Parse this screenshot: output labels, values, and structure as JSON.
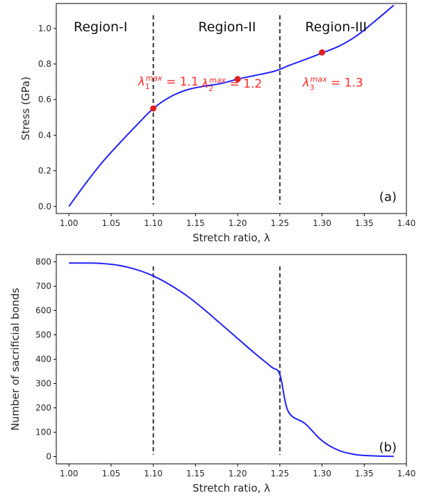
{
  "chart_data": [
    {
      "type": "line",
      "panel_label": "(a)",
      "xlabel": "Stretch ratio, λ",
      "ylabel": "Stress (GPa)",
      "xlim": [
        0.985,
        1.4
      ],
      "ylim": [
        -0.04,
        1.14
      ],
      "xticks": [
        "1.00",
        "1.05",
        "1.10",
        "1.15",
        "1.20",
        "1.25",
        "1.30",
        "1.35",
        "1.40"
      ],
      "yticks": [
        "0.0",
        "0.2",
        "0.4",
        "0.6",
        "0.8",
        "1.0"
      ],
      "grid": false,
      "series_color": "#1f1fff",
      "x": [
        1.0,
        1.02,
        1.04,
        1.06,
        1.08,
        1.1,
        1.12,
        1.14,
        1.16,
        1.18,
        1.2,
        1.22,
        1.24,
        1.25,
        1.26,
        1.28,
        1.3,
        1.32,
        1.34,
        1.36,
        1.385
      ],
      "y": [
        0.0,
        0.13,
        0.25,
        0.355,
        0.455,
        0.55,
        0.615,
        0.655,
        0.675,
        0.69,
        0.715,
        0.735,
        0.755,
        0.77,
        0.79,
        0.825,
        0.862,
        0.9,
        0.955,
        1.03,
        1.13
      ],
      "vlines": [
        1.1,
        1.25
      ],
      "regions": [
        {
          "label": "Region-I",
          "x": 1.0375
        },
        {
          "label": "Region-II",
          "x": 1.1875
        },
        {
          "label": "Region-III",
          "x": 1.3165
        }
      ],
      "markers": [
        {
          "x": 1.1,
          "y": 0.55,
          "sub": "1",
          "label_value": "1.1"
        },
        {
          "x": 1.2,
          "y": 0.715,
          "sub": "2",
          "label_value": "1.2"
        },
        {
          "x": 1.3,
          "y": 0.865,
          "sub": "3",
          "label_value": "1.3"
        }
      ],
      "annotation_symbol": "λ",
      "annotation_sup": "max",
      "annotation_eq": " = ",
      "marker_color": "#e02020"
    },
    {
      "type": "line",
      "panel_label": "(b)",
      "xlabel": "Stretch ratio, λ",
      "ylabel": "Number of sacrificial bonds",
      "xlim": [
        0.985,
        1.4
      ],
      "ylim": [
        -30,
        830
      ],
      "xticks": [
        "1.00",
        "1.05",
        "1.10",
        "1.15",
        "1.20",
        "1.25",
        "1.30",
        "1.35",
        "1.40"
      ],
      "yticks": [
        "0",
        "100",
        "200",
        "300",
        "400",
        "500",
        "600",
        "700",
        "800"
      ],
      "grid": false,
      "series_color": "#1f1fff",
      "x": [
        1.0,
        1.02,
        1.04,
        1.06,
        1.08,
        1.1,
        1.12,
        1.14,
        1.16,
        1.18,
        1.2,
        1.22,
        1.24,
        1.25,
        1.26,
        1.28,
        1.3,
        1.32,
        1.34,
        1.36,
        1.38,
        1.385
      ],
      "y": [
        795,
        795,
        793,
        785,
        768,
        742,
        705,
        660,
        605,
        545,
        485,
        425,
        368,
        337,
        185,
        135,
        65,
        25,
        8,
        3,
        1,
        1
      ],
      "vlines": [
        1.1,
        1.25
      ]
    }
  ]
}
